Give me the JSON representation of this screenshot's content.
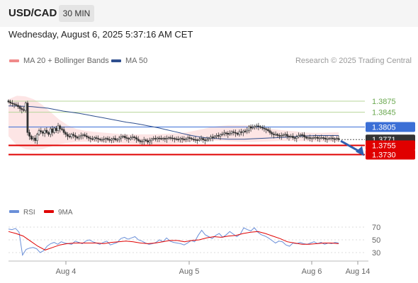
{
  "header": {
    "symbol": "USD/CAD",
    "timeframe": "30 MIN"
  },
  "datetime": "Wednesday, August 6, 2025 5:37:16 AM CET",
  "legend": {
    "bollinger": "MA 20 + Bollinger Bands",
    "ma50": "MA 50",
    "rsi": "RSI",
    "ma9": "9MA"
  },
  "credit": "Research © 2025 Trading Central",
  "colors": {
    "bollinger": "#f08a8a",
    "bollinger_fill": "#fde2e2",
    "ma50": "#2f4f8f",
    "candle": "#333333",
    "resistance_green": "#6aa84f",
    "resistance_blue": "#3b6fd6",
    "support_red": "#e00000",
    "last_price": "#333333",
    "rsi": "#6a8fd8",
    "rsi_ma": "#e00000"
  },
  "chart_data": [
    {
      "type": "candlestick",
      "title": "USD/CAD",
      "ylim": [
        1.372,
        1.3895
      ],
      "x_ticks": [
        "Aug 4",
        "Aug 5",
        "Aug 6",
        "Aug 14"
      ],
      "levels": [
        {
          "value": 1.3875,
          "label": "1.3875",
          "kind": "resistance"
        },
        {
          "value": 1.3845,
          "label": "1.3845",
          "kind": "resistance"
        },
        {
          "value": 1.3805,
          "label": "1.3805",
          "kind": "pivot"
        },
        {
          "value": 1.3771,
          "label": "1.3771",
          "kind": "last"
        },
        {
          "value": 1.3755,
          "label": "1.3755",
          "kind": "support"
        },
        {
          "value": 1.373,
          "label": "1.3730",
          "kind": "support"
        }
      ],
      "forecast": {
        "from": 1.3771,
        "to": 1.373,
        "direction": "down"
      },
      "close": [
        1.3873,
        1.387,
        1.3868,
        1.3866,
        1.3864,
        1.386,
        1.3855,
        1.3852,
        1.385,
        1.387,
        1.379,
        1.378,
        1.3772,
        1.3775,
        1.3768,
        1.3785,
        1.3795,
        1.3792,
        1.3788,
        1.3796,
        1.379,
        1.3785,
        1.38,
        1.379,
        1.3802,
        1.3795,
        1.3808,
        1.38,
        1.3798,
        1.379,
        1.3785,
        1.378,
        1.3778,
        1.3785,
        1.3782,
        1.3778,
        1.3775,
        1.3779,
        1.3782,
        1.3784,
        1.3781,
        1.3778,
        1.3775,
        1.3773,
        1.3772,
        1.3776,
        1.3774,
        1.3772,
        1.377,
        1.3771,
        1.3772,
        1.3774,
        1.3771,
        1.3769,
        1.3772,
        1.3774,
        1.377,
        1.3771,
        1.3775,
        1.3778,
        1.378,
        1.3776,
        1.3774,
        1.3772,
        1.3776,
        1.3778,
        1.3776,
        1.3772,
        1.3768,
        1.3765,
        1.3766,
        1.377,
        1.3768,
        1.3764,
        1.3768,
        1.3772,
        1.3774,
        1.3772,
        1.3775,
        1.3774,
        1.3773,
        1.3774,
        1.3772,
        1.3774,
        1.3776,
        1.3775,
        1.3774,
        1.3773,
        1.3772,
        1.3771,
        1.3774,
        1.3772,
        1.377,
        1.3773,
        1.3776,
        1.3774,
        1.3772,
        1.3771,
        1.377,
        1.3769,
        1.3772,
        1.3774,
        1.377,
        1.3768,
        1.3771,
        1.3774,
        1.3778,
        1.3776,
        1.3779,
        1.3782,
        1.378,
        1.3784,
        1.3786,
        1.3789,
        1.3788,
        1.3785,
        1.3788,
        1.3792,
        1.379,
        1.3788,
        1.3785,
        1.3792,
        1.379,
        1.3794,
        1.3792,
        1.3796,
        1.3806,
        1.3802,
        1.3804,
        1.3807,
        1.3808,
        1.3806,
        1.3804,
        1.3802,
        1.38,
        1.3798,
        1.3795,
        1.379,
        1.3786,
        1.3784,
        1.3785,
        1.3782,
        1.378,
        1.3782,
        1.3784,
        1.3785,
        1.378,
        1.3778,
        1.378,
        1.3776,
        1.3774,
        1.3778,
        1.3782,
        1.3784,
        1.3783,
        1.3778,
        1.3775,
        1.3776,
        1.3774,
        1.3775,
        1.3776,
        1.3777,
        1.3774,
        1.3775,
        1.3776,
        1.3775,
        1.3772,
        1.3773,
        1.3774,
        1.3775,
        1.3773,
        1.3772,
        1.3774,
        1.3771
      ],
      "ma50": [
        1.3862,
        1.3862,
        1.3861,
        1.386,
        1.3858,
        1.3856,
        1.3852,
        1.3848,
        1.3845,
        1.3842,
        1.3838,
        1.3834,
        1.383,
        1.3826,
        1.3822,
        1.3818,
        1.3815,
        1.3811,
        1.3807,
        1.3803,
        1.3798,
        1.3793,
        1.3788,
        1.3783,
        1.3779,
        1.3776,
        1.3774,
        1.3773,
        1.3772,
        1.3772,
        1.3772,
        1.3773,
        1.3774,
        1.3775,
        1.3776,
        1.3777,
        1.3778,
        1.378,
        1.3781,
        1.3782,
        1.3782,
        1.3782,
        1.3782
      ],
      "bollinger_upper": [
        1.388,
        1.389,
        1.3888,
        1.388,
        1.3865,
        1.3845,
        1.3825,
        1.381,
        1.38,
        1.3795,
        1.3792,
        1.379,
        1.3788,
        1.3786,
        1.3785,
        1.3785,
        1.3785,
        1.3785,
        1.3786,
        1.3787,
        1.3788,
        1.379,
        1.3795,
        1.38,
        1.3805,
        1.3808,
        1.381,
        1.381,
        1.381,
        1.3808,
        1.3804,
        1.38,
        1.3797,
        1.3795,
        1.3793,
        1.379,
        1.3789,
        1.3789,
        1.379,
        1.3791
      ],
      "bollinger_lower": [
        1.378,
        1.3755,
        1.3745,
        1.3742,
        1.3745,
        1.3752,
        1.3758,
        1.3762,
        1.3764,
        1.3765,
        1.3764,
        1.3763,
        1.3762,
        1.3761,
        1.376,
        1.3759,
        1.3758,
        1.3757,
        1.3757,
        1.3758,
        1.376,
        1.3763,
        1.3766,
        1.3768,
        1.3768,
        1.3767,
        1.3766,
        1.3765,
        1.3764,
        1.3764,
        1.3765,
        1.3766,
        1.3767,
        1.3767,
        1.3767,
        1.3766,
        1.3765,
        1.3765,
        1.3764,
        1.3764
      ]
    },
    {
      "type": "line",
      "title": "RSI",
      "ylim": [
        20,
        80
      ],
      "y_ticks": [
        70,
        50,
        30
      ],
      "series": [
        {
          "name": "RSI",
          "values": [
            67,
            66,
            68,
            62,
            26,
            35,
            37,
            38,
            36,
            30,
            33,
            40,
            44,
            46,
            43,
            47,
            45,
            44,
            43,
            48,
            46,
            44,
            48,
            50,
            47,
            45,
            43,
            46,
            48,
            42,
            44,
            46,
            52,
            54,
            51,
            53,
            55,
            50,
            48,
            45,
            43,
            44,
            46,
            50,
            47,
            53,
            48,
            46,
            45,
            44,
            42,
            45,
            49,
            47,
            57,
            65,
            58,
            55,
            52,
            57,
            60,
            54,
            58,
            63,
            59,
            55,
            59,
            69,
            66,
            64,
            69,
            62,
            58,
            56,
            53,
            49,
            45,
            48,
            47,
            42,
            40,
            45,
            44,
            46,
            44,
            43,
            45,
            47,
            44,
            46,
            43,
            45,
            44,
            46,
            45
          ]
        },
        {
          "name": "9MA",
          "values": [
            63,
            60,
            56,
            48,
            40,
            34,
            38,
            42,
            44,
            45,
            45,
            45,
            45,
            44,
            46,
            47,
            48,
            47,
            45,
            44,
            45,
            47,
            49,
            49,
            47,
            49,
            50,
            53,
            55,
            54,
            56,
            57,
            60,
            62,
            63,
            60,
            56,
            52,
            47,
            45,
            43,
            43,
            44,
            45,
            45,
            44
          ]
        }
      ]
    }
  ]
}
